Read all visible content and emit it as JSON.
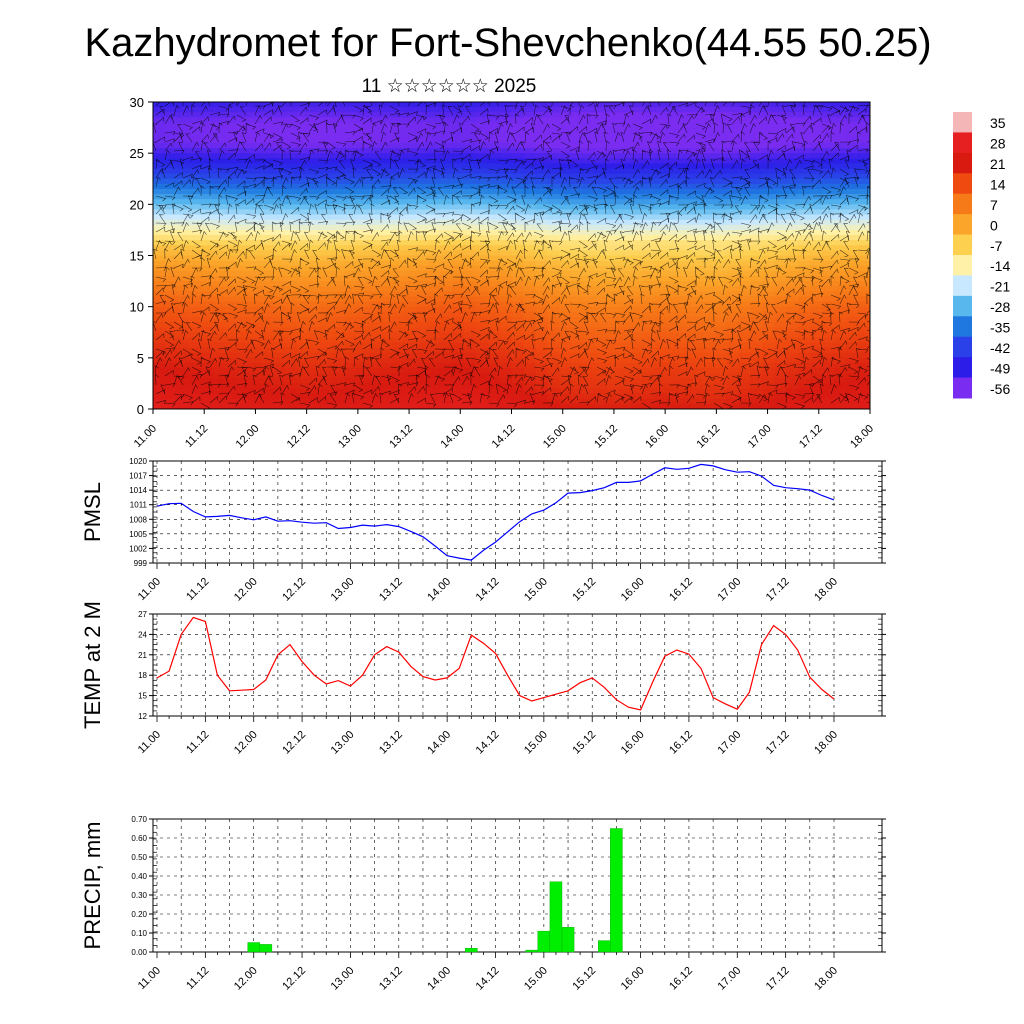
{
  "title": "Kazhydromet for Fort-Shevchenko(44.55 50.25)",
  "subtitle": "11 ☆☆☆☆☆☆ 2025",
  "time_labels": [
    "11.00",
    "11.12",
    "12.00",
    "12.12",
    "13.00",
    "13.12",
    "14.00",
    "14.12",
    "15.00",
    "15.12",
    "16.00",
    "16.12",
    "17.00",
    "17.12",
    "18.00"
  ],
  "colorbar": {
    "labels": [
      "35",
      "28",
      "21",
      "14",
      "7",
      "0",
      "-7",
      "-14",
      "-21",
      "-28",
      "-35",
      "-42",
      "-49",
      "-56"
    ],
    "stops": [
      "#f4b6b6",
      "#e62020",
      "#d81a10",
      "#ef4a10",
      "#f77a18",
      "#fba52a",
      "#fdd050",
      "#fff2a8",
      "#c8e8ff",
      "#58b8ee",
      "#1e78e0",
      "#2a40e8",
      "#2c1ee8",
      "#7a2cf0"
    ]
  },
  "chart_data": [
    {
      "type": "heatmap",
      "name_key": "cross-section",
      "x": [
        "11.00",
        "11.12",
        "12.00",
        "12.12",
        "13.00",
        "13.12",
        "14.00",
        "14.12",
        "15.00",
        "15.12",
        "16.00",
        "16.12",
        "17.00",
        "17.12",
        "18.00"
      ],
      "ylim": [
        0,
        30
      ],
      "yticks": [
        0,
        5,
        10,
        15,
        20,
        25,
        30
      ],
      "zlim": [
        -56,
        35
      ],
      "levels": [
        0,
        2,
        4,
        6,
        8,
        10,
        12,
        14,
        16,
        18,
        20,
        22,
        24,
        26,
        28,
        30
      ],
      "profile_by_level": [
        24,
        21,
        19,
        16,
        13,
        10,
        5,
        0,
        -7,
        -18,
        -28,
        -38,
        -48,
        -56,
        -56,
        -50
      ],
      "column_offset": [
        2,
        1,
        0,
        -1,
        0,
        1,
        2,
        0,
        -3,
        -4,
        -3,
        -4,
        -2,
        0,
        1
      ],
      "note_wind": "wind barbs overlay"
    },
    {
      "type": "line",
      "ylabel": "PMSL",
      "ylim": [
        999,
        1020
      ],
      "yticks": [
        999,
        1002,
        1005,
        1008,
        1011,
        1014,
        1017,
        1020
      ],
      "color": "#0000ff",
      "x_hours": [
        0,
        3,
        6,
        9,
        12,
        15,
        18,
        21,
        24,
        27,
        30,
        33,
        36,
        39,
        42,
        45,
        48,
        51,
        54,
        57,
        60,
        63,
        66,
        69,
        72,
        75,
        78,
        81,
        84,
        87,
        90,
        93,
        96,
        99,
        102,
        105,
        108,
        111,
        114,
        117,
        120,
        123,
        126,
        129,
        132,
        135,
        138,
        141,
        144,
        147,
        150,
        153,
        156,
        159,
        162,
        165,
        168
      ],
      "values": [
        1010.7,
        1011.2,
        1011.3,
        1009.6,
        1008.5,
        1008.6,
        1008.8,
        1008.3,
        1007.9,
        1008.5,
        1007.6,
        1007.7,
        1007.4,
        1007.2,
        1007.3,
        1006.1,
        1006.3,
        1006.8,
        1006.6,
        1006.9,
        1006.5,
        1005.5,
        1004.4,
        1002.5,
        1000.5,
        1000.0,
        999.6,
        1001.6,
        1003.3,
        1005.4,
        1007.5,
        1009.1,
        1009.9,
        1011.4,
        1013.4,
        1013.5,
        1013.9,
        1014.5,
        1015.6,
        1015.6,
        1015.9,
        1017.3,
        1018.6,
        1018.3,
        1018.5,
        1019.3,
        1019.0,
        1018.2,
        1017.7,
        1017.8,
        1016.9,
        1015.0,
        1014.5,
        1014.3,
        1014.0,
        1012.9,
        1012.0
      ]
    },
    {
      "type": "line",
      "ylabel": "TEMP at 2 M",
      "ylim": [
        12,
        27
      ],
      "yticks": [
        12,
        15,
        18,
        21,
        24,
        27
      ],
      "color": "#ff0000",
      "x_hours": [
        0,
        3,
        6,
        9,
        12,
        15,
        18,
        21,
        24,
        27,
        30,
        33,
        36,
        39,
        42,
        45,
        48,
        51,
        54,
        57,
        60,
        63,
        66,
        69,
        72,
        75,
        78,
        81,
        84,
        87,
        90,
        93,
        96,
        99,
        102,
        105,
        108,
        111,
        114,
        117,
        120,
        123,
        126,
        129,
        132,
        135,
        138,
        141,
        144,
        147,
        150,
        153,
        156,
        159,
        162,
        165,
        168
      ],
      "values": [
        17.6,
        18.6,
        24.0,
        26.5,
        25.9,
        18.0,
        15.7,
        15.8,
        15.9,
        17.3,
        21.0,
        22.5,
        20.0,
        18.0,
        16.7,
        17.2,
        16.4,
        18.0,
        21.0,
        22.2,
        21.4,
        19.3,
        17.8,
        17.3,
        17.6,
        19.0,
        23.9,
        22.7,
        21.2,
        18.0,
        15.0,
        14.2,
        14.7,
        15.2,
        15.7,
        16.9,
        17.6,
        16.2,
        14.4,
        13.3,
        12.9,
        17.0,
        20.8,
        21.7,
        21.1,
        19.0,
        14.7,
        13.8,
        13.0,
        15.5,
        22.5,
        25.3,
        24.0,
        21.7,
        17.7,
        15.9,
        14.5
      ]
    },
    {
      "type": "bar",
      "ylabel": "PRECIP, mm",
      "ylim": [
        0,
        0.7
      ],
      "yticks": [
        "0.00",
        "0.10",
        "0.20",
        "0.30",
        "0.40",
        "0.50",
        "0.60",
        "0.70"
      ],
      "color": "#00ee00",
      "x_hours": [
        24,
        27,
        78,
        93,
        96,
        99,
        102,
        111,
        114
      ],
      "values": [
        0.05,
        0.04,
        0.02,
        0.01,
        0.11,
        0.37,
        0.13,
        0.06,
        0.65
      ]
    }
  ]
}
